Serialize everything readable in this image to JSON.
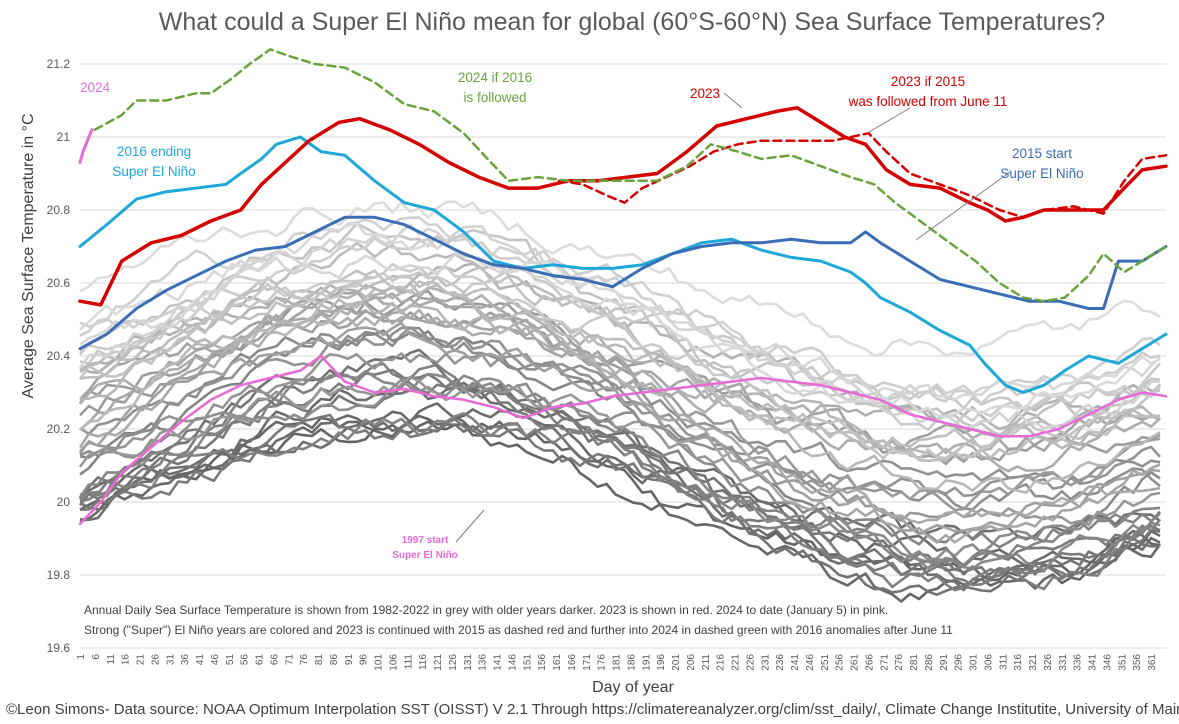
{
  "chart_data": {
    "type": "line",
    "title": "What could a Super El Niño mean for global (60°S-60°N) Sea Surface Temperatures?",
    "xlabel": "Day of year",
    "ylabel": "Average Sea Surface Temperature in °C",
    "ylim": [
      19.6,
      21.2
    ],
    "yticks": [
      "19.6",
      "19.8",
      "20",
      "20.2",
      "20.4",
      "20.6",
      "20.8",
      "21",
      "21.2"
    ],
    "xlim": [
      1,
      366
    ],
    "xticks": [
      "1",
      "6",
      "11",
      "16",
      "21",
      "26",
      "31",
      "36",
      "41",
      "46",
      "51",
      "56",
      "61",
      "66",
      "71",
      "76",
      "81",
      "86",
      "91",
      "96",
      "101",
      "106",
      "111",
      "116",
      "121",
      "126",
      "131",
      "136",
      "141",
      "146",
      "151",
      "156",
      "161",
      "166",
      "171",
      "176",
      "181",
      "186",
      "191",
      "196",
      "201",
      "206",
      "211",
      "216",
      "221",
      "226",
      "231",
      "236",
      "241",
      "246",
      "251",
      "256",
      "261",
      "266",
      "271",
      "276",
      "281",
      "286",
      "291",
      "296",
      "301",
      "306",
      "311",
      "316",
      "321",
      "326",
      "331",
      "336",
      "341",
      "346",
      "351",
      "356",
      "361"
    ],
    "grid": "horizontal",
    "colors": {
      "grey_years": "#9e9e9e",
      "y2023": "#d40000",
      "y2016": "#1ea8d8",
      "y2015": "#3a6db5",
      "y1997": "#e86ad6",
      "y2024": "#e86ad6",
      "proj2016": "#6aa23c"
    },
    "series": [
      {
        "name": "2016 ending Super El Niño",
        "color": "#1ea8d8",
        "dash": false,
        "width": 3,
        "points": [
          [
            1,
            20.7
          ],
          [
            10,
            20.76
          ],
          [
            20,
            20.83
          ],
          [
            30,
            20.85
          ],
          [
            40,
            20.86
          ],
          [
            50,
            20.87
          ],
          [
            55,
            20.9
          ],
          [
            62,
            20.94
          ],
          [
            67,
            20.98
          ],
          [
            75,
            21.0
          ],
          [
            82,
            20.96
          ],
          [
            90,
            20.95
          ],
          [
            100,
            20.88
          ],
          [
            110,
            20.82
          ],
          [
            120,
            20.8
          ],
          [
            130,
            20.74
          ],
          [
            140,
            20.66
          ],
          [
            150,
            20.64
          ],
          [
            160,
            20.65
          ],
          [
            170,
            20.64
          ],
          [
            180,
            20.64
          ],
          [
            190,
            20.65
          ],
          [
            200,
            20.68
          ],
          [
            210,
            20.71
          ],
          [
            220,
            20.72
          ],
          [
            230,
            20.69
          ],
          [
            240,
            20.67
          ],
          [
            250,
            20.66
          ],
          [
            260,
            20.63
          ],
          [
            265,
            20.6
          ],
          [
            270,
            20.56
          ],
          [
            280,
            20.52
          ],
          [
            290,
            20.47
          ],
          [
            300,
            20.43
          ],
          [
            305,
            20.38
          ],
          [
            312,
            20.32
          ],
          [
            318,
            20.3
          ],
          [
            325,
            20.32
          ],
          [
            332,
            20.36
          ],
          [
            340,
            20.4
          ],
          [
            350,
            20.38
          ],
          [
            358,
            20.42
          ],
          [
            366,
            20.46
          ]
        ]
      },
      {
        "name": "2015 start Super El Niño",
        "color": "#3a6db5",
        "dash": false,
        "width": 3,
        "points": [
          [
            1,
            20.42
          ],
          [
            10,
            20.46
          ],
          [
            20,
            20.53
          ],
          [
            30,
            20.58
          ],
          [
            40,
            20.62
          ],
          [
            50,
            20.66
          ],
          [
            60,
            20.69
          ],
          [
            70,
            20.7
          ],
          [
            80,
            20.74
          ],
          [
            90,
            20.78
          ],
          [
            100,
            20.78
          ],
          [
            110,
            20.76
          ],
          [
            120,
            20.72
          ],
          [
            130,
            20.68
          ],
          [
            140,
            20.65
          ],
          [
            150,
            20.64
          ],
          [
            160,
            20.62
          ],
          [
            170,
            20.61
          ],
          [
            180,
            20.59
          ],
          [
            190,
            20.64
          ],
          [
            200,
            20.68
          ],
          [
            210,
            20.7
          ],
          [
            220,
            20.71
          ],
          [
            230,
            20.71
          ],
          [
            240,
            20.72
          ],
          [
            250,
            20.71
          ],
          [
            260,
            20.71
          ],
          [
            265,
            20.74
          ],
          [
            270,
            20.71
          ],
          [
            280,
            20.66
          ],
          [
            290,
            20.61
          ],
          [
            300,
            20.59
          ],
          [
            310,
            20.57
          ],
          [
            320,
            20.55
          ],
          [
            330,
            20.55
          ],
          [
            340,
            20.53
          ],
          [
            345,
            20.53
          ],
          [
            350,
            20.66
          ],
          [
            358,
            20.66
          ],
          [
            366,
            20.7
          ]
        ]
      },
      {
        "name": "2023",
        "color": "#d40000",
        "dash": false,
        "width": 3.5,
        "points": [
          [
            1,
            20.55
          ],
          [
            8,
            20.54
          ],
          [
            15,
            20.66
          ],
          [
            25,
            20.71
          ],
          [
            35,
            20.73
          ],
          [
            45,
            20.77
          ],
          [
            55,
            20.8
          ],
          [
            62,
            20.87
          ],
          [
            70,
            20.93
          ],
          [
            78,
            20.99
          ],
          [
            88,
            21.04
          ],
          [
            95,
            21.05
          ],
          [
            105,
            21.02
          ],
          [
            115,
            20.98
          ],
          [
            125,
            20.93
          ],
          [
            135,
            20.89
          ],
          [
            145,
            20.86
          ],
          [
            155,
            20.86
          ],
          [
            165,
            20.88
          ],
          [
            175,
            20.88
          ],
          [
            185,
            20.89
          ],
          [
            195,
            20.9
          ],
          [
            205,
            20.96
          ],
          [
            215,
            21.03
          ],
          [
            225,
            21.05
          ],
          [
            235,
            21.07
          ],
          [
            242,
            21.08
          ],
          [
            250,
            21.04
          ],
          [
            258,
            21.0
          ],
          [
            265,
            20.98
          ],
          [
            272,
            20.91
          ],
          [
            280,
            20.87
          ],
          [
            290,
            20.86
          ],
          [
            300,
            20.82
          ],
          [
            306,
            20.8
          ],
          [
            312,
            20.77
          ],
          [
            318,
            20.78
          ],
          [
            325,
            20.8
          ],
          [
            335,
            20.8
          ],
          [
            345,
            20.8
          ],
          [
            352,
            20.86
          ],
          [
            358,
            20.91
          ],
          [
            366,
            20.92
          ]
        ]
      },
      {
        "name": "2023 if 2015 was followed from June 11",
        "color": "#d40000",
        "dash": true,
        "width": 2.5,
        "points": [
          [
            162,
            20.88
          ],
          [
            170,
            20.87
          ],
          [
            178,
            20.84
          ],
          [
            184,
            20.82
          ],
          [
            190,
            20.86
          ],
          [
            198,
            20.89
          ],
          [
            206,
            20.92
          ],
          [
            214,
            20.96
          ],
          [
            222,
            20.98
          ],
          [
            230,
            20.99
          ],
          [
            238,
            20.99
          ],
          [
            246,
            20.99
          ],
          [
            254,
            20.99
          ],
          [
            260,
            21.0
          ],
          [
            266,
            21.01
          ],
          [
            272,
            20.96
          ],
          [
            280,
            20.9
          ],
          [
            290,
            20.87
          ],
          [
            300,
            20.84
          ],
          [
            310,
            20.8
          ],
          [
            318,
            20.78
          ],
          [
            325,
            20.8
          ],
          [
            335,
            20.81
          ],
          [
            345,
            20.79
          ],
          [
            352,
            20.88
          ],
          [
            358,
            20.94
          ],
          [
            366,
            20.95
          ]
        ]
      },
      {
        "name": "2024 if 2016 is followed",
        "color": "#6aa23c",
        "dash": true,
        "width": 2.5,
        "points": [
          [
            6,
            21.02
          ],
          [
            15,
            21.06
          ],
          [
            20,
            21.1
          ],
          [
            30,
            21.1
          ],
          [
            40,
            21.12
          ],
          [
            45,
            21.12
          ],
          [
            52,
            21.16
          ],
          [
            58,
            21.2
          ],
          [
            65,
            21.24
          ],
          [
            72,
            21.22
          ],
          [
            80,
            21.2
          ],
          [
            90,
            21.19
          ],
          [
            100,
            21.15
          ],
          [
            110,
            21.09
          ],
          [
            120,
            21.07
          ],
          [
            130,
            21.01
          ],
          [
            138,
            20.94
          ],
          [
            145,
            20.88
          ],
          [
            155,
            20.89
          ],
          [
            165,
            20.88
          ],
          [
            175,
            20.88
          ],
          [
            185,
            20.88
          ],
          [
            195,
            20.88
          ],
          [
            205,
            20.92
          ],
          [
            213,
            20.98
          ],
          [
            222,
            20.96
          ],
          [
            230,
            20.94
          ],
          [
            240,
            20.95
          ],
          [
            250,
            20.92
          ],
          [
            260,
            20.89
          ],
          [
            268,
            20.87
          ],
          [
            275,
            20.82
          ],
          [
            285,
            20.76
          ],
          [
            295,
            20.7
          ],
          [
            302,
            20.66
          ],
          [
            310,
            20.6
          ],
          [
            318,
            20.56
          ],
          [
            325,
            20.55
          ],
          [
            332,
            20.56
          ],
          [
            340,
            20.62
          ],
          [
            345,
            20.68
          ],
          [
            352,
            20.63
          ],
          [
            358,
            20.66
          ],
          [
            366,
            20.7
          ]
        ]
      },
      {
        "name": "1997 start Super El Niño",
        "color": "#e86ad6",
        "dash": false,
        "width": 2.5,
        "points": [
          [
            1,
            19.94
          ],
          [
            8,
            20.0
          ],
          [
            15,
            20.08
          ],
          [
            25,
            20.15
          ],
          [
            35,
            20.22
          ],
          [
            45,
            20.28
          ],
          [
            55,
            20.32
          ],
          [
            65,
            20.34
          ],
          [
            75,
            20.36
          ],
          [
            82,
            20.4
          ],
          [
            90,
            20.33
          ],
          [
            100,
            20.3
          ],
          [
            110,
            20.31
          ],
          [
            120,
            20.29
          ],
          [
            130,
            20.28
          ],
          [
            140,
            20.26
          ],
          [
            150,
            20.23
          ],
          [
            160,
            20.26
          ],
          [
            170,
            20.27
          ],
          [
            180,
            20.29
          ],
          [
            190,
            20.3
          ],
          [
            200,
            20.31
          ],
          [
            210,
            20.32
          ],
          [
            220,
            20.33
          ],
          [
            230,
            20.34
          ],
          [
            240,
            20.33
          ],
          [
            250,
            20.32
          ],
          [
            260,
            20.3
          ],
          [
            270,
            20.28
          ],
          [
            280,
            20.24
          ],
          [
            290,
            20.22
          ],
          [
            300,
            20.2
          ],
          [
            310,
            20.18
          ],
          [
            320,
            20.18
          ],
          [
            330,
            20.2
          ],
          [
            340,
            20.24
          ],
          [
            350,
            20.28
          ],
          [
            358,
            20.3
          ],
          [
            366,
            20.29
          ]
        ]
      },
      {
        "name": "2024",
        "color": "#e86ad6",
        "dash": false,
        "width": 3,
        "points": [
          [
            1,
            20.93
          ],
          [
            2,
            20.96
          ],
          [
            3,
            20.98
          ],
          [
            4,
            21.0
          ],
          [
            5,
            21.02
          ]
        ]
      }
    ],
    "annotations": [
      {
        "text": "2024",
        "color": "#e86ad6"
      },
      {
        "text": "2024 if 2016",
        "color": "#6aa23c"
      },
      {
        "text": "is followed",
        "color": "#6aa23c"
      },
      {
        "text": "2023",
        "color": "#d40000"
      },
      {
        "text": "2023 if 2015",
        "color": "#d40000"
      },
      {
        "text": "was followed from June 11",
        "color": "#d40000"
      },
      {
        "text": "2016 ending",
        "color": "#1ea8d8"
      },
      {
        "text": "Super El Niño",
        "color": "#1ea8d8"
      },
      {
        "text": "2015 start",
        "color": "#3a6db5"
      },
      {
        "text": "Super El Niño",
        "color": "#3a6db5"
      },
      {
        "text": "1997 start",
        "color": "#e86ad6"
      },
      {
        "text": "Super El Niño",
        "color": "#e86ad6"
      }
    ],
    "notes": [
      "Annual Daily Sea Surface Temperature is shown from 1982-2022 in grey with older years darker. 2023 is shown in red. 2024 to date (January 5) in pink.",
      "Strong (\"Super\") El Niño years are colored and 2023 is continued with 2015 as dashed red and further into 2024 in dashed green with 2016 anomalies after June 11"
    ],
    "credit": "©Leon Simons- Data source: NOAA Optimum Interpolation SST (OISST) V 2.1 Through https://climatereanalyzer.org/clim/sst_daily/, Climate Change Institutite, University of Maine"
  }
}
